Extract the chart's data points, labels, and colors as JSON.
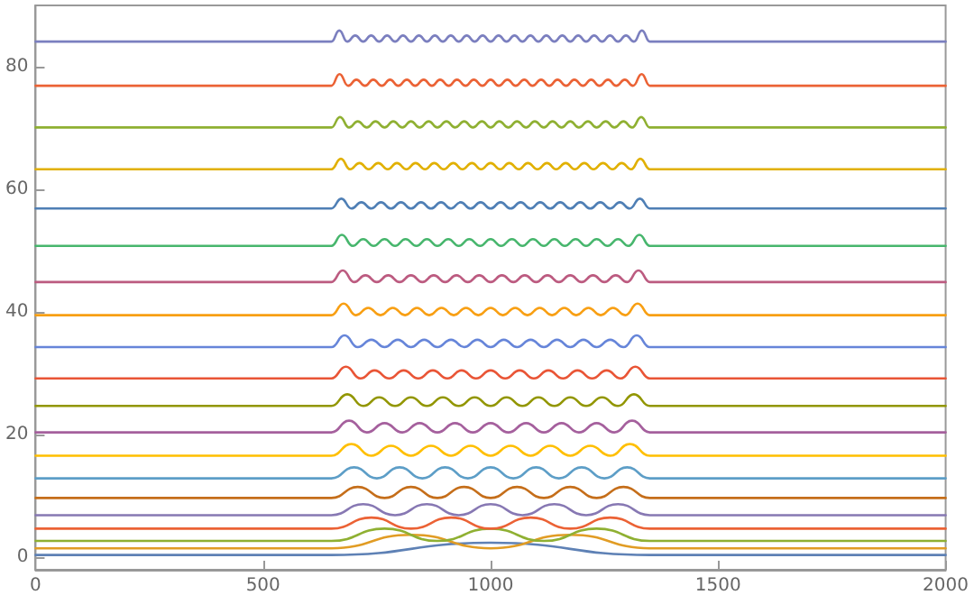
{
  "chart_data": {
    "type": "line",
    "xlim": [
      0,
      2000
    ],
    "ylim": [
      -2,
      90
    ],
    "xticks": [
      0,
      500,
      1000,
      1500,
      2000
    ],
    "yticks": [
      0,
      20,
      40,
      60,
      80
    ],
    "line_style": "solid",
    "series": [
      {
        "color": "#5e81b5",
        "x": [
          0,
          650,
          1000,
          1350,
          2000
        ],
        "values": [
          0.4,
          0.4,
          2.4,
          0.4,
          0.4
        ]
      },
      {
        "color": "#e19c24",
        "x": [
          0,
          650,
          825,
          1000,
          1175,
          1350,
          2000
        ],
        "values": [
          1.5,
          1.5,
          3.7,
          1.5,
          3.7,
          1.5,
          1.5
        ]
      },
      {
        "color": "#8fb032",
        "x": [
          0,
          650,
          767,
          883,
          1000,
          1117,
          1233,
          1350,
          2000
        ],
        "values": [
          2.7,
          2.7,
          4.7,
          2.7,
          4.7,
          2.7,
          4.7,
          2.7,
          2.7
        ]
      },
      {
        "color": "#eb6235",
        "x": [
          0,
          650,
          738,
          825,
          913,
          1000,
          1088,
          1175,
          1263,
          1350,
          2000
        ],
        "values": [
          4.7,
          4.7,
          6.5,
          4.7,
          6.5,
          4.7,
          6.5,
          4.7,
          6.5,
          4.7,
          4.7
        ]
      },
      {
        "color": "#8778b3",
        "x": [
          0,
          650,
          720,
          790,
          860,
          930,
          1000,
          1070,
          1140,
          1210,
          1280,
          1350,
          2000
        ],
        "values": [
          6.9,
          6.9,
          8.7,
          6.9,
          8.7,
          6.9,
          8.7,
          6.9,
          8.7,
          6.9,
          8.7,
          6.9,
          6.9
        ]
      },
      {
        "color": "#c56e1a",
        "x": [
          0,
          650,
          708,
          767,
          825,
          883,
          942,
          1000,
          1058,
          1117,
          1175,
          1233,
          1292,
          1350,
          2000
        ],
        "values": [
          9.7,
          9.7,
          11.5,
          9.7,
          11.5,
          9.7,
          11.5,
          9.7,
          11.5,
          9.7,
          11.5,
          9.7,
          11.5,
          9.7,
          9.7
        ]
      },
      {
        "color": "#5d9ec7",
        "x": [
          0,
          650,
          700,
          750,
          800,
          850,
          900,
          950,
          1000,
          1050,
          1100,
          1150,
          1200,
          1250,
          1300,
          1350,
          2000
        ],
        "values": [
          12.9,
          12.9,
          14.7,
          12.9,
          14.7,
          12.9,
          14.7,
          12.9,
          14.7,
          12.9,
          14.7,
          12.9,
          14.7,
          12.9,
          14.7,
          12.9,
          12.9
        ]
      },
      {
        "color": "#ffbf00",
        "x": [
          0,
          650,
          694,
          738,
          781,
          825,
          869,
          913,
          956,
          1000,
          1044,
          1088,
          1131,
          1175,
          1219,
          1263,
          1306,
          1350,
          2000
        ],
        "values": [
          16.6,
          16.6,
          18.5,
          16.6,
          18.2,
          16.6,
          18.2,
          16.6,
          18.2,
          16.6,
          18.2,
          16.6,
          18.2,
          16.6,
          18.2,
          16.6,
          18.5,
          16.6,
          16.6
        ]
      },
      {
        "color": "#a5609d",
        "x": [
          0,
          650,
          689,
          728,
          767,
          806,
          844,
          883,
          922,
          961,
          1000,
          1039,
          1078,
          1117,
          1156,
          1194,
          1233,
          1272,
          1311,
          1350,
          2000
        ],
        "values": [
          20.4,
          20.4,
          22.3,
          20.4,
          21.9,
          20.4,
          21.9,
          20.4,
          21.9,
          20.4,
          21.9,
          20.4,
          21.9,
          20.4,
          21.9,
          20.4,
          21.9,
          20.4,
          22.3,
          20.4,
          20.4
        ]
      },
      {
        "color": "#929600",
        "x": [
          0,
          650,
          685,
          720,
          755,
          790,
          825,
          860,
          895,
          930,
          965,
          1000,
          1035,
          1070,
          1105,
          1140,
          1175,
          1210,
          1245,
          1280,
          1315,
          1350,
          2000
        ],
        "values": [
          24.7,
          24.7,
          26.6,
          24.7,
          26.1,
          24.7,
          26.1,
          24.7,
          26.1,
          24.7,
          26.1,
          24.7,
          26.1,
          24.7,
          26.1,
          24.7,
          26.1,
          24.7,
          26.1,
          24.7,
          26.6,
          24.7,
          24.7
        ]
      },
      {
        "color": "#e95536",
        "x": [
          0,
          650,
          682,
          714,
          745,
          777,
          809,
          841,
          873,
          905,
          936,
          968,
          1000,
          1032,
          1064,
          1095,
          1127,
          1159,
          1191,
          1223,
          1255,
          1286,
          1318,
          1350,
          2000
        ],
        "values": [
          29.2,
          29.2,
          31.1,
          29.2,
          30.5,
          29.2,
          30.5,
          29.2,
          30.5,
          29.2,
          30.5,
          29.2,
          30.5,
          29.2,
          30.5,
          29.2,
          30.5,
          29.2,
          30.5,
          29.2,
          30.5,
          29.2,
          31.1,
          29.2,
          29.2
        ]
      },
      {
        "color": "#6685d9",
        "x": [
          0,
          650,
          679,
          708,
          738,
          767,
          796,
          825,
          854,
          883,
          913,
          942,
          971,
          1000,
          1029,
          1058,
          1088,
          1117,
          1146,
          1175,
          1204,
          1233,
          1263,
          1292,
          1321,
          1350,
          2000
        ],
        "values": [
          34.3,
          34.3,
          36.2,
          34.3,
          35.5,
          34.3,
          35.5,
          34.3,
          35.5,
          34.3,
          35.5,
          34.3,
          35.5,
          34.3,
          35.5,
          34.3,
          35.5,
          34.3,
          35.5,
          34.3,
          35.5,
          34.3,
          35.5,
          34.3,
          36.2,
          34.3,
          34.3
        ]
      },
      {
        "color": "#f89f13",
        "x": [
          0,
          650,
          677,
          704,
          731,
          758,
          785,
          812,
          838,
          865,
          892,
          919,
          946,
          973,
          1000,
          1027,
          1054,
          1081,
          1108,
          1135,
          1162,
          1188,
          1215,
          1242,
          1269,
          1296,
          1323,
          1350,
          2000
        ],
        "values": [
          39.5,
          39.5,
          41.4,
          39.5,
          40.7,
          39.5,
          40.7,
          39.5,
          40.7,
          39.5,
          40.7,
          39.5,
          40.7,
          39.5,
          40.7,
          39.5,
          40.7,
          39.5,
          40.7,
          39.5,
          40.7,
          39.5,
          40.7,
          39.5,
          40.7,
          39.5,
          41.4,
          39.5,
          39.5
        ]
      },
      {
        "color": "#bc5b80",
        "x": [
          0,
          650,
          675,
          700,
          725,
          750,
          775,
          800,
          825,
          850,
          875,
          900,
          925,
          950,
          975,
          1000,
          1025,
          1050,
          1075,
          1100,
          1125,
          1150,
          1175,
          1200,
          1225,
          1250,
          1275,
          1300,
          1325,
          1350,
          2000
        ],
        "values": [
          44.9,
          44.9,
          46.8,
          44.9,
          46.0,
          44.9,
          46.0,
          44.9,
          46.0,
          44.9,
          46.0,
          44.9,
          46.0,
          44.9,
          46.0,
          44.9,
          46.0,
          44.9,
          46.0,
          44.9,
          46.0,
          44.9,
          46.0,
          44.9,
          46.0,
          44.9,
          46.0,
          44.9,
          46.8,
          44.9,
          44.9
        ]
      },
      {
        "color": "#47b66d",
        "x": [
          0,
          650,
          673,
          697,
          720,
          743,
          767,
          790,
          813,
          837,
          860,
          883,
          907,
          930,
          953,
          977,
          1000,
          1023,
          1047,
          1070,
          1093,
          1117,
          1140,
          1163,
          1187,
          1210,
          1233,
          1257,
          1280,
          1303,
          1327,
          1350,
          2000
        ],
        "values": [
          50.8,
          50.8,
          52.6,
          50.8,
          51.9,
          50.8,
          51.9,
          50.8,
          51.9,
          50.8,
          51.9,
          50.8,
          51.9,
          50.8,
          51.9,
          50.8,
          51.9,
          50.8,
          51.9,
          50.8,
          51.9,
          50.8,
          51.9,
          50.8,
          51.9,
          50.8,
          51.9,
          50.8,
          51.9,
          50.8,
          52.6,
          50.8,
          50.8
        ]
      },
      {
        "color": "#4f7fb5",
        "x": [
          0,
          650,
          672,
          694,
          716,
          738,
          759,
          781,
          803,
          825,
          847,
          869,
          891,
          913,
          934,
          956,
          978,
          1000,
          1022,
          1044,
          1066,
          1088,
          1109,
          1131,
          1153,
          1175,
          1197,
          1219,
          1241,
          1263,
          1284,
          1306,
          1328,
          1350,
          2000
        ],
        "values": [
          56.9,
          56.9,
          58.5,
          56.9,
          57.9,
          56.9,
          57.9,
          56.9,
          57.9,
          56.9,
          57.9,
          56.9,
          57.9,
          56.9,
          57.9,
          56.9,
          57.9,
          56.9,
          57.9,
          56.9,
          57.9,
          56.9,
          57.9,
          56.9,
          57.9,
          56.9,
          57.9,
          56.9,
          57.9,
          56.9,
          57.9,
          56.9,
          58.5,
          56.9,
          56.9
        ]
      },
      {
        "color": "#e1b000",
        "x": [
          0,
          650,
          671,
          691,
          712,
          732,
          753,
          774,
          794,
          815,
          835,
          856,
          876,
          897,
          918,
          938,
          959,
          979,
          1000,
          1021,
          1041,
          1062,
          1082,
          1103,
          1124,
          1144,
          1165,
          1185,
          1206,
          1226,
          1247,
          1268,
          1288,
          1309,
          1329,
          1350,
          2000
        ],
        "values": [
          63.3,
          63.3,
          65.0,
          63.3,
          64.3,
          63.3,
          64.3,
          63.3,
          64.3,
          63.3,
          64.3,
          63.3,
          64.3,
          63.3,
          64.3,
          63.3,
          64.3,
          63.3,
          64.3,
          63.3,
          64.3,
          63.3,
          64.3,
          63.3,
          64.3,
          63.3,
          64.3,
          63.3,
          64.3,
          63.3,
          64.3,
          63.3,
          64.3,
          63.3,
          65.0,
          63.3,
          63.3
        ]
      },
      {
        "color": "#8fb032",
        "x": [
          0,
          650,
          669,
          689,
          708,
          728,
          747,
          767,
          786,
          806,
          825,
          844,
          864,
          883,
          903,
          922,
          942,
          961,
          981,
          1000,
          1019,
          1039,
          1058,
          1078,
          1097,
          1117,
          1136,
          1156,
          1175,
          1194,
          1214,
          1233,
          1253,
          1272,
          1292,
          1311,
          1331,
          1350,
          2000
        ],
        "values": [
          70.1,
          70.1,
          71.8,
          70.1,
          71.1,
          70.1,
          71.1,
          70.1,
          71.1,
          70.1,
          71.1,
          70.1,
          71.1,
          70.1,
          71.1,
          70.1,
          71.1,
          70.1,
          71.1,
          70.1,
          71.1,
          70.1,
          71.1,
          70.1,
          71.1,
          70.1,
          71.1,
          70.1,
          71.1,
          70.1,
          71.1,
          70.1,
          71.1,
          70.1,
          71.1,
          70.1,
          71.8,
          70.1,
          70.1
        ]
      },
      {
        "color": "#eb6235",
        "x": [
          0,
          650,
          668,
          687,
          705,
          724,
          742,
          761,
          779,
          797,
          816,
          834,
          853,
          871,
          889,
          908,
          926,
          945,
          963,
          982,
          1000,
          1018,
          1037,
          1055,
          1074,
          1092,
          1111,
          1129,
          1147,
          1166,
          1184,
          1203,
          1221,
          1239,
          1258,
          1276,
          1295,
          1313,
          1332,
          1350,
          2000
        ],
        "values": [
          76.9,
          76.9,
          78.8,
          76.9,
          77.9,
          76.9,
          77.9,
          76.9,
          77.9,
          76.9,
          77.9,
          76.9,
          77.9,
          76.9,
          77.9,
          76.9,
          77.9,
          76.9,
          77.9,
          76.9,
          77.9,
          76.9,
          77.9,
          76.9,
          77.9,
          76.9,
          77.9,
          76.9,
          77.9,
          76.9,
          77.9,
          76.9,
          77.9,
          76.9,
          77.9,
          76.9,
          77.9,
          76.9,
          78.8,
          76.9,
          76.9
        ]
      },
      {
        "color": "#7b7fbf",
        "x": [
          0,
          650,
          667.5,
          685,
          702.5,
          720,
          737.5,
          755,
          772.5,
          790,
          807.5,
          825,
          842.5,
          860,
          877.5,
          895,
          912.5,
          930,
          947.5,
          965,
          982.5,
          1000,
          1017.5,
          1035,
          1052.5,
          1070,
          1087.5,
          1105,
          1122.5,
          1140,
          1157.5,
          1175,
          1192.5,
          1210,
          1227.5,
          1245,
          1262.5,
          1280,
          1297.5,
          1315,
          1332.5,
          1350,
          2000
        ],
        "values": [
          84.1,
          84.1,
          85.9,
          84.1,
          85.1,
          84.1,
          85.1,
          84.1,
          85.1,
          84.1,
          85.1,
          84.1,
          85.1,
          84.1,
          85.1,
          84.1,
          85.1,
          84.1,
          85.1,
          84.1,
          85.1,
          84.1,
          85.1,
          84.1,
          85.1,
          84.1,
          85.1,
          84.1,
          85.1,
          84.1,
          85.1,
          84.1,
          85.1,
          84.1,
          85.1,
          84.1,
          85.1,
          84.1,
          85.1,
          84.1,
          85.9,
          84.1,
          84.1
        ]
      }
    ]
  }
}
